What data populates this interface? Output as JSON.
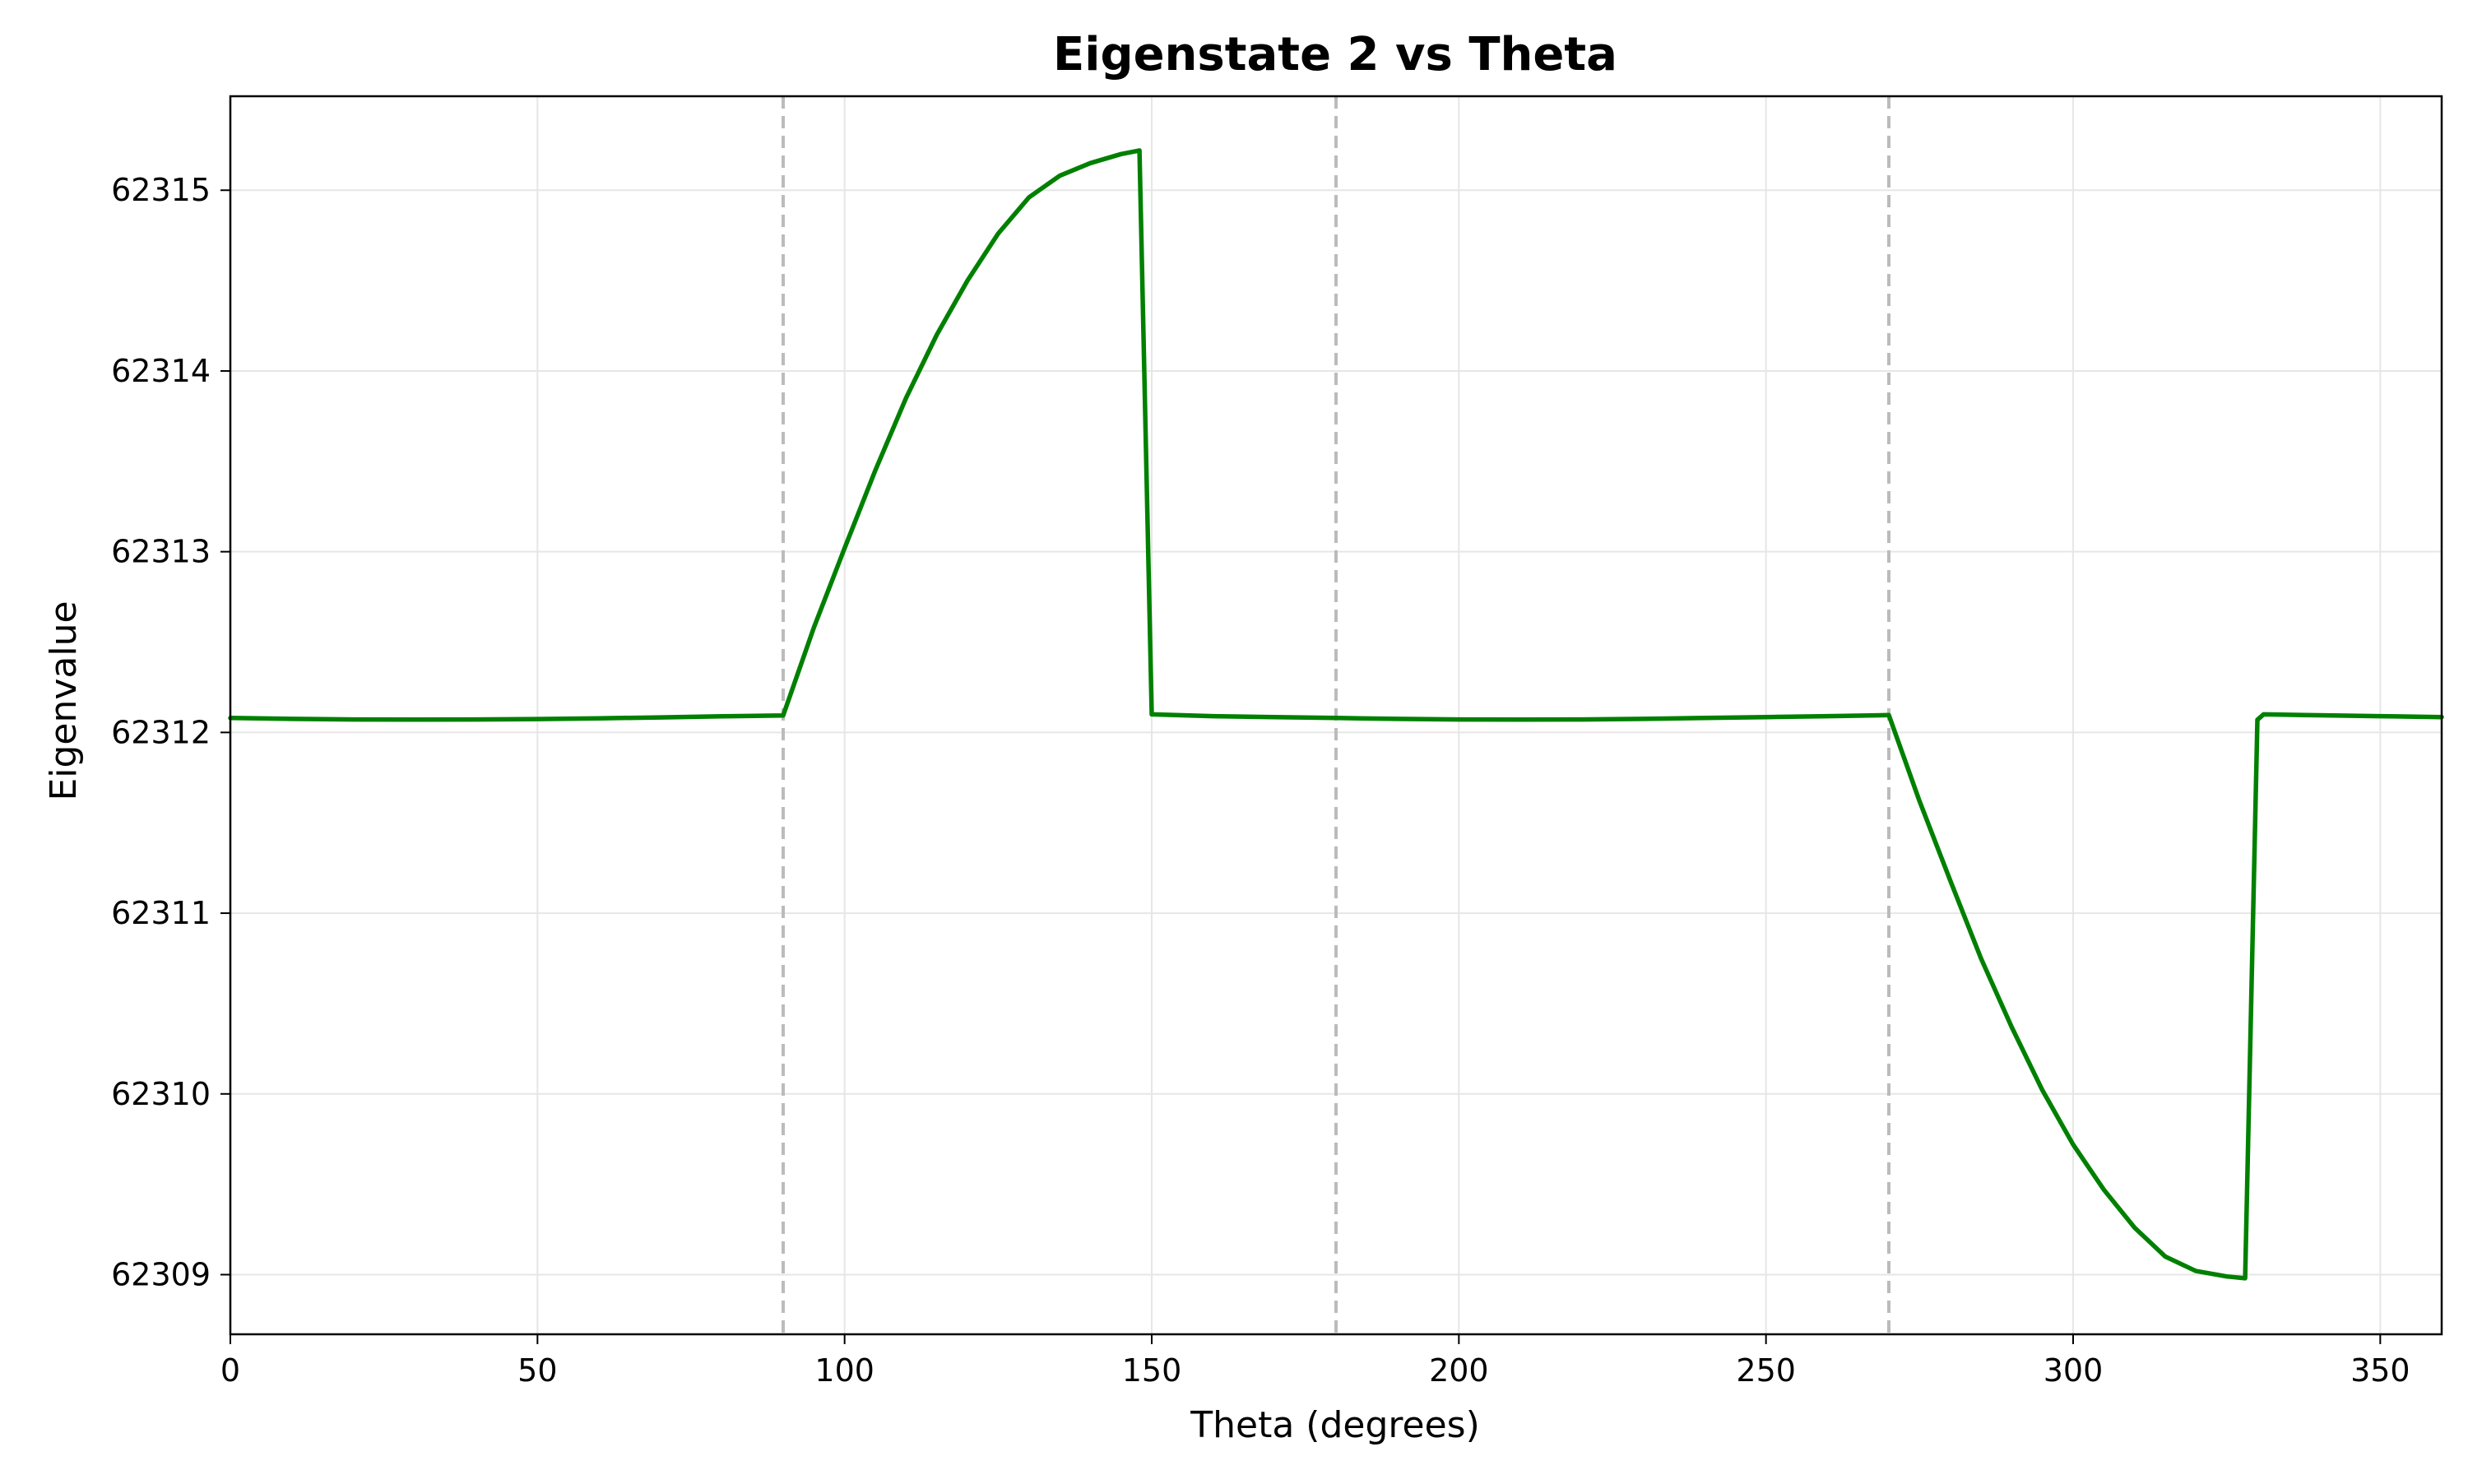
{
  "chart_data": {
    "type": "line",
    "title": "Eigenstate 2 vs Theta",
    "xlabel": "Theta (degrees)",
    "ylabel": "Eigenvalue",
    "xlim": [
      0,
      360
    ],
    "ylim": [
      62308.67,
      62315.52
    ],
    "xticks": [
      0,
      50,
      100,
      150,
      200,
      250,
      300,
      350
    ],
    "yticks": [
      62309,
      62310,
      62311,
      62312,
      62313,
      62314,
      62315
    ],
    "grid": true,
    "vlines": [
      90,
      180,
      270
    ],
    "colors": {
      "series": "#008000",
      "vline": "#bbbbbb",
      "grid": "#e6e6e6"
    },
    "series": [
      {
        "x": [
          0,
          10,
          20,
          30,
          40,
          50,
          60,
          70,
          80,
          90,
          95,
          100,
          105,
          110,
          115,
          120,
          125,
          130,
          135,
          140,
          145,
          148,
          150,
          160,
          170,
          180,
          190,
          200,
          210,
          220,
          230,
          240,
          250,
          260,
          270,
          275,
          280,
          285,
          290,
          295,
          300,
          305,
          310,
          315,
          320,
          325,
          328,
          330,
          331,
          340,
          350,
          360
        ],
        "y": [
          62312.08,
          62312.075,
          62312.072,
          62312.071,
          62312.072,
          62312.074,
          62312.078,
          62312.083,
          62312.089,
          62312.094,
          62312.58,
          62313.02,
          62313.45,
          62313.85,
          62314.2,
          62314.5,
          62314.76,
          62314.96,
          62315.08,
          62315.15,
          62315.2,
          62315.22,
          62312.1,
          62312.09,
          62312.085,
          62312.08,
          62312.075,
          62312.072,
          62312.071,
          62312.072,
          62312.075,
          62312.08,
          62312.085,
          62312.09,
          62312.096,
          62311.62,
          62311.18,
          62310.75,
          62310.37,
          62310.02,
          62309.72,
          62309.47,
          62309.26,
          62309.1,
          62309.02,
          62308.99,
          62308.98,
          62312.07,
          62312.1,
          62312.095,
          62312.09,
          62312.085
        ]
      }
    ]
  }
}
